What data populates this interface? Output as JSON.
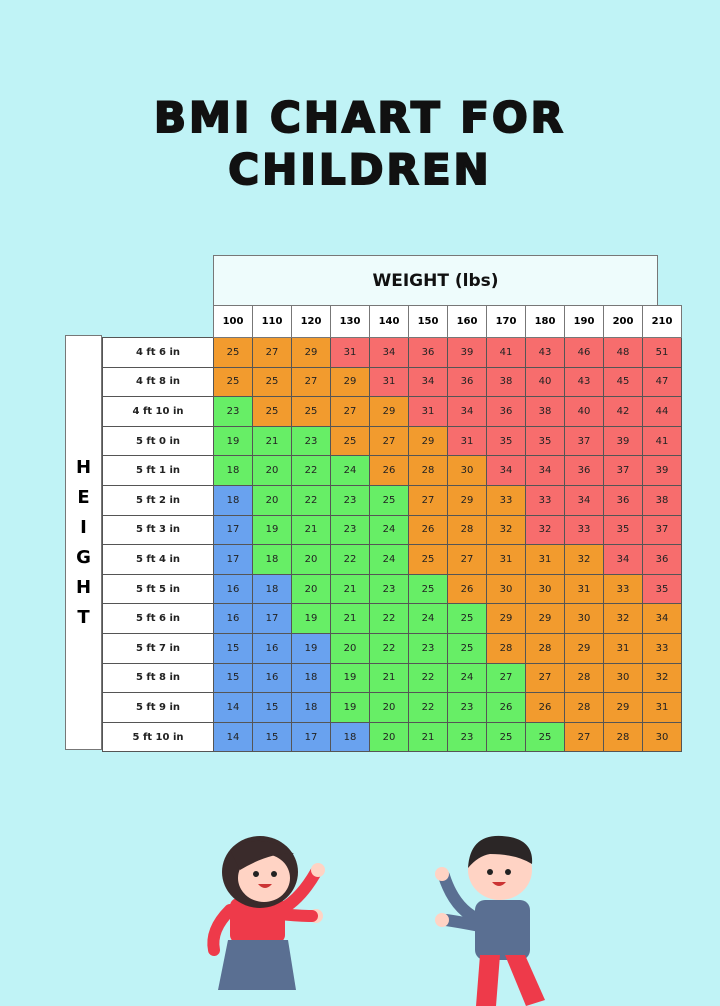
{
  "title": [
    "BMI CHART FOR",
    "CHILDREN"
  ],
  "weight_header": "WEIGHT (lbs)",
  "height_label": [
    "H",
    "E",
    "I",
    "G",
    "H",
    "T"
  ],
  "colors": {
    "B": "#69a2ef",
    "G": "#67ee66",
    "O": "#f29b2e",
    "R": "#f76d6d"
  },
  "weights": [
    "100",
    "110",
    "120",
    "130",
    "140",
    "150",
    "160",
    "170",
    "180",
    "190",
    "200",
    "210"
  ],
  "rows": [
    {
      "height": "4 ft 6 in",
      "bmi": [
        25,
        27,
        29,
        31,
        34,
        36,
        39,
        41,
        43,
        46,
        48,
        51
      ],
      "cat": "OOORRRRRRRRR"
    },
    {
      "height": "4 ft 8 in",
      "bmi": [
        25,
        25,
        27,
        29,
        31,
        34,
        36,
        38,
        40,
        43,
        45,
        47
      ],
      "cat": "OOOORRRRRRRR"
    },
    {
      "height": "4 ft 10 in",
      "bmi": [
        23,
        25,
        25,
        27,
        29,
        31,
        34,
        36,
        38,
        40,
        42,
        44
      ],
      "cat": "GOOOORRRRRRR"
    },
    {
      "height": "5 ft 0 in",
      "bmi": [
        19,
        21,
        23,
        25,
        27,
        29,
        31,
        35,
        35,
        37,
        39,
        41
      ],
      "cat": "GGGOOORRRRRR"
    },
    {
      "height": "5 ft 1 in",
      "bmi": [
        18,
        20,
        22,
        24,
        26,
        28,
        30,
        34,
        34,
        36,
        37,
        39
      ],
      "cat": "GGGGOOORRRRR"
    },
    {
      "height": "5 ft 2 in",
      "bmi": [
        18,
        20,
        22,
        23,
        25,
        27,
        29,
        33,
        33,
        34,
        36,
        38
      ],
      "cat": "BGGGGOOORRRR"
    },
    {
      "height": "5 ft 3 in",
      "bmi": [
        17,
        19,
        21,
        23,
        24,
        26,
        28,
        32,
        32,
        33,
        35,
        37
      ],
      "cat": "BGGGGOOORRRR"
    },
    {
      "height": "5 ft 4 in",
      "bmi": [
        17,
        18,
        20,
        22,
        24,
        25,
        27,
        31,
        31,
        32,
        34,
        36
      ],
      "cat": "BGGGGOOOOORR"
    },
    {
      "height": "5 ft 5 in",
      "bmi": [
        16,
        18,
        20,
        21,
        23,
        25,
        26,
        30,
        30,
        31,
        33,
        35
      ],
      "cat": "BBGGGGOOOOOR"
    },
    {
      "height": "5 ft 6 in",
      "bmi": [
        16,
        17,
        19,
        21,
        22,
        24,
        25,
        29,
        29,
        30,
        32,
        34
      ],
      "cat": "BBGGGGGOOOOO"
    },
    {
      "height": "5 ft 7 in",
      "bmi": [
        15,
        16,
        19,
        20,
        22,
        23,
        25,
        28,
        28,
        29,
        31,
        33
      ],
      "cat": "BBBGGGGOOOOO"
    },
    {
      "height": "5 ft 8 in",
      "bmi": [
        15,
        16,
        18,
        19,
        21,
        22,
        24,
        27,
        27,
        28,
        30,
        32
      ],
      "cat": "BBBGGGGGOOOO"
    },
    {
      "height": "5 ft 9 in",
      "bmi": [
        14,
        15,
        18,
        19,
        20,
        22,
        23,
        26,
        26,
        28,
        29,
        31
      ],
      "cat": "BBBGGGGGOOOO"
    },
    {
      "height": "5 ft 10 in",
      "bmi": [
        14,
        15,
        17,
        18,
        20,
        21,
        23,
        25,
        25,
        27,
        28,
        30
      ],
      "cat": "BBBBGGGGGOOO"
    }
  ]
}
